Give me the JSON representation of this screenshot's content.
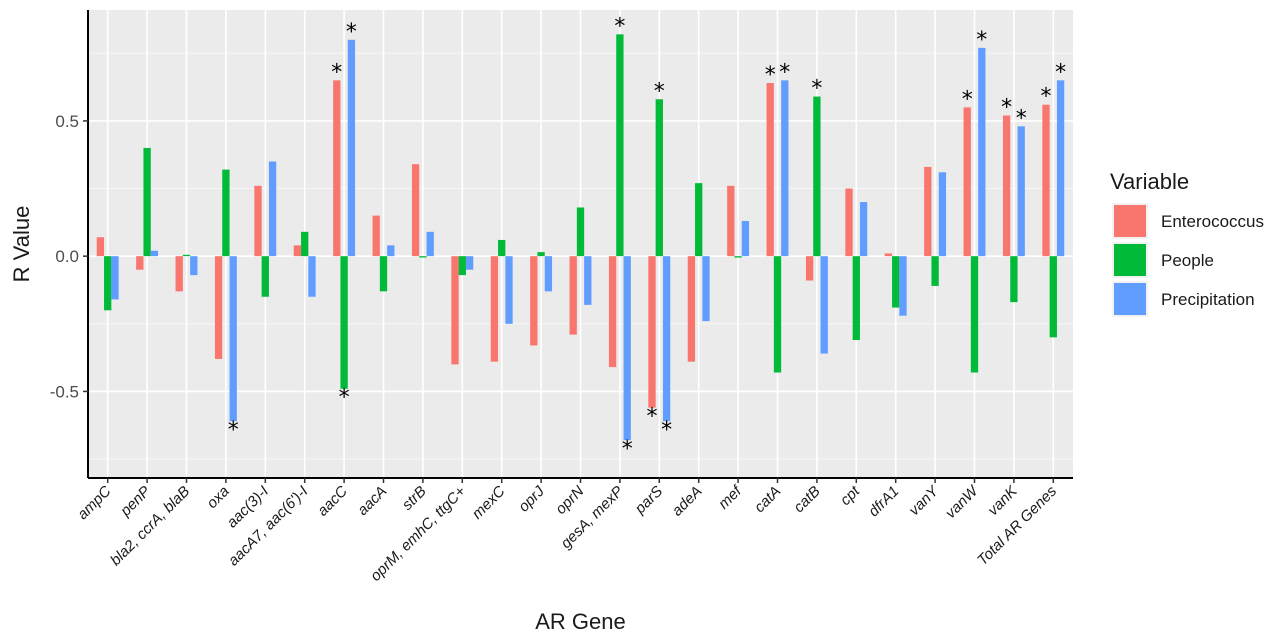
{
  "chart_data": {
    "type": "bar",
    "xlabel": "AR Gene",
    "ylabel": "R Value",
    "ylim": [
      -0.82,
      0.91
    ],
    "yticks": [
      -0.5,
      0.0,
      0.5
    ],
    "ytick_labels": [
      "-0.5",
      "0.0",
      "0.5"
    ],
    "grid": true,
    "legend": {
      "title": "Variable",
      "position": "right"
    },
    "categories": [
      "ampC",
      "penP",
      "bla2, ccrA, blaB",
      "oxa",
      "aac(3)-I",
      "aacA7, aac(6')-I",
      "aacC",
      "aacA",
      "strB",
      "oprM, emhC, ttgC+",
      "mexC",
      "oprJ",
      "oprN",
      "gesA, mexP",
      "parS",
      "adeA",
      "mef",
      "catA",
      "catB",
      "cpt",
      "dfrA1",
      "vanY",
      "vanW",
      "vanK",
      "Total AR Genes"
    ],
    "series": [
      {
        "name": "Enterococcus",
        "color": "#f8766d",
        "values": [
          0.07,
          -0.05,
          -0.13,
          -0.38,
          0.26,
          0.04,
          0.65,
          0.15,
          0.34,
          -0.4,
          -0.39,
          -0.33,
          -0.29,
          -0.41,
          -0.56,
          -0.39,
          0.26,
          0.64,
          -0.09,
          0.25,
          0.01,
          0.33,
          0.55,
          0.52,
          0.56
        ],
        "significant": [
          false,
          false,
          false,
          false,
          false,
          false,
          true,
          false,
          false,
          false,
          false,
          false,
          false,
          false,
          true,
          false,
          false,
          true,
          false,
          false,
          false,
          false,
          true,
          true,
          true
        ]
      },
      {
        "name": "People",
        "color": "#00ba38",
        "values": [
          -0.2,
          0.4,
          0.005,
          0.32,
          -0.15,
          0.09,
          -0.49,
          -0.13,
          -0.005,
          -0.07,
          0.06,
          0.015,
          0.18,
          0.82,
          0.58,
          0.27,
          -0.005,
          -0.43,
          0.59,
          -0.31,
          -0.19,
          -0.11,
          -0.43,
          -0.17,
          -0.3
        ],
        "significant": [
          false,
          false,
          false,
          false,
          false,
          false,
          true,
          false,
          false,
          false,
          false,
          false,
          false,
          true,
          true,
          false,
          false,
          false,
          true,
          false,
          false,
          false,
          false,
          false,
          false
        ]
      },
      {
        "name": "Precipitation",
        "color": "#619cff",
        "values": [
          -0.16,
          0.02,
          -0.07,
          -0.61,
          0.35,
          -0.15,
          0.8,
          0.04,
          0.09,
          -0.05,
          -0.25,
          -0.13,
          -0.18,
          -0.68,
          -0.61,
          -0.24,
          0.13,
          0.65,
          -0.36,
          0.2,
          -0.22,
          0.31,
          0.77,
          0.48,
          0.65
        ],
        "significant": [
          false,
          false,
          false,
          true,
          false,
          false,
          true,
          false,
          false,
          false,
          false,
          false,
          false,
          true,
          true,
          false,
          false,
          true,
          false,
          false,
          false,
          false,
          true,
          true,
          true
        ]
      }
    ],
    "significance_marker": "*"
  }
}
